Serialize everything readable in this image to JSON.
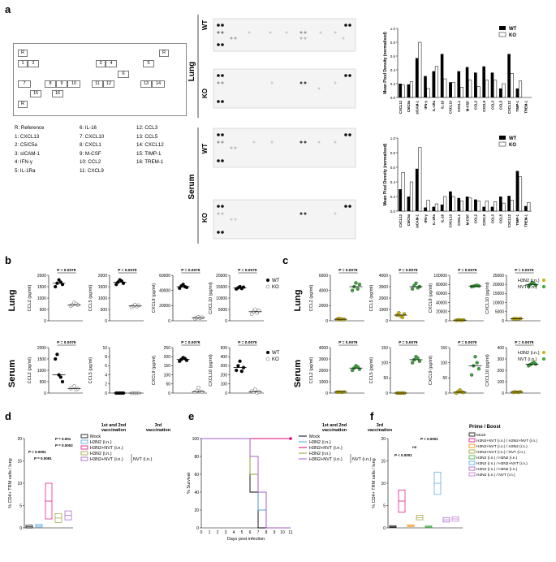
{
  "panels": {
    "a": "a",
    "b": "b",
    "c": "c",
    "d": "d",
    "e": "e",
    "f": "f"
  },
  "panel_a": {
    "key_grid": [
      "R",
      "R",
      "1",
      "2",
      "3",
      "4",
      "5",
      "6",
      "7",
      "8",
      "9",
      "10",
      "11",
      "12",
      "13",
      "14",
      "15",
      "16",
      "R"
    ],
    "legend": [
      [
        "R: Reference",
        "6: IL-16",
        "12: CCL3"
      ],
      [
        "1: CXCL13",
        "7: CXCL10",
        "13: CCL5"
      ],
      [
        "2: C5/C5a",
        "8: CXCL1",
        "14: CXCL12"
      ],
      [
        "3: sICAM-1",
        "9: M-CSF",
        "15: TIMP-1"
      ],
      [
        "4: IFN-γ",
        "10: CCL2",
        "16: TREM-1"
      ],
      [
        "5: IL-1Ra",
        "11: CXCL9",
        ""
      ]
    ],
    "tissue_lung": "Lung",
    "tissue_serum": "Serum",
    "wt": "WT",
    "ko": "KO"
  },
  "chart_data": [
    {
      "type": "bar",
      "id": "a-lung",
      "ylabel": "Mean Pixel Density (normalised)",
      "ylim": [
        0,
        1.0
      ],
      "yticks": [
        "0.0",
        "0.2",
        "0.4",
        "0.6",
        "0.8",
        "1.0"
      ],
      "categories": [
        "CXCL13",
        "C5/C5a",
        "sICAM-1",
        "IFN-γ",
        "IL-1Ra",
        "IL-16",
        "CXCL10",
        "CXCL1",
        "M-CSF",
        "CCL2",
        "CXCL9",
        "CCL3",
        "CCL5",
        "CXCL12",
        "TIMP-1",
        "TREM-1"
      ],
      "series": [
        {
          "name": "WT",
          "values": [
            0.2,
            0.19,
            0.57,
            0.31,
            0.38,
            0.63,
            0.22,
            0.38,
            0.44,
            0.36,
            0.45,
            0.36,
            0.13,
            0.63,
            0.13,
            0.0
          ]
        },
        {
          "name": "KO",
          "values": [
            0.18,
            0.23,
            0.8,
            0.13,
            0.45,
            0.27,
            0.22,
            0.15,
            0.25,
            0.16,
            0.25,
            0.25,
            0.2,
            0.35,
            0.24,
            0.0
          ]
        }
      ],
      "legend": [
        "WT",
        "KO"
      ]
    },
    {
      "type": "bar",
      "id": "a-serum",
      "ylabel": "Mean Pixel Density (normalised)",
      "ylim": [
        0,
        1.0
      ],
      "yticks": [
        "0.0",
        "0.2",
        "0.4",
        "0.6",
        "0.8",
        "1.0"
      ],
      "categories": [
        "CXCL13",
        "C5/C5a",
        "sICAM-1",
        "IFN-γ",
        "IL-1Ra",
        "IL-16",
        "CXCL10",
        "CXCL1",
        "M-CSF",
        "CCL2",
        "CXCL9",
        "CCL3",
        "CCL5",
        "CXCL12",
        "TIMP-1",
        "TREM-1"
      ],
      "series": [
        {
          "name": "WT",
          "values": [
            0.3,
            0.2,
            0.58,
            0.05,
            0.06,
            0.09,
            0.27,
            0.18,
            0.2,
            0.16,
            0.06,
            0.06,
            0.2,
            0.21,
            0.55,
            0.07
          ]
        },
        {
          "name": "KO",
          "values": [
            0.53,
            0.4,
            0.87,
            0.15,
            0.1,
            0.2,
            0.2,
            0.14,
            0.18,
            0.14,
            0.14,
            0.13,
            0.11,
            0.15,
            0.47,
            0.12
          ]
        }
      ],
      "legend": [
        "WT",
        "KO"
      ]
    },
    {
      "type": "scatter",
      "id": "b-lung-ccl2",
      "ylabel": "CCL2 (pg/ml)",
      "yticks": [
        "0",
        "500",
        "1000",
        "1500",
        "2000"
      ],
      "ylim": [
        0,
        2000
      ],
      "pvalue": "P = 0.0079",
      "groups": [
        "WT",
        "KO"
      ],
      "values": [
        [
          1500,
          1650,
          1800,
          1700,
          1600
        ],
        [
          650,
          700,
          800,
          750,
          700
        ]
      ]
    },
    {
      "type": "scatter",
      "id": "b-lung-ccl5",
      "ylabel": "CCL5 (pg/ml)",
      "yticks": [
        "0",
        "500",
        "1000",
        "1500",
        "2000"
      ],
      "ylim": [
        0,
        2000
      ],
      "pvalue": "P = 0.0079",
      "groups": [
        "WT",
        "KO"
      ],
      "values": [
        [
          1600,
          1700,
          1800,
          1750,
          1650
        ],
        [
          600,
          650,
          700,
          620,
          680
        ]
      ]
    },
    {
      "type": "scatter",
      "id": "b-lung-cxcl9",
      "ylabel": "CXCL9 (pg/ml)",
      "yticks": [
        "0",
        "20000",
        "40000",
        "60000"
      ],
      "ylim": [
        0,
        60000
      ],
      "pvalue": "P = 0.0079",
      "groups": [
        "WT",
        "KO"
      ],
      "values": [
        [
          43000,
          46000,
          48000,
          45000,
          44000
        ],
        [
          3000,
          4000,
          5000,
          3500,
          4500
        ]
      ]
    },
    {
      "type": "scatter",
      "id": "b-lung-cxcl10",
      "ylabel": "CXCL10 (pg/ml)",
      "yticks": [
        "0",
        "5000",
        "10000",
        "15000",
        "20000"
      ],
      "ylim": [
        0,
        20000
      ],
      "pvalue": "P = 0.0079",
      "groups": [
        "WT",
        "KO"
      ],
      "values": [
        [
          14000,
          14500,
          15000,
          14200,
          14800
        ],
        [
          3000,
          4000,
          5000,
          3500,
          4500
        ]
      ]
    },
    {
      "type": "scatter",
      "id": "b-serum-ccl2",
      "ylabel": "CCL2 (pg/ml)",
      "yticks": [
        "0",
        "500",
        "1000",
        "1500",
        "2000"
      ],
      "ylim": [
        0,
        2000
      ],
      "pvalue": "P = 0.0079",
      "groups": [
        "WT",
        "KO"
      ],
      "values": [
        [
          1500,
          1700,
          800,
          700,
          500
        ],
        [
          200,
          250,
          300,
          150,
          200
        ]
      ]
    },
    {
      "type": "scatter",
      "id": "b-serum-ccl5",
      "ylabel": "CCL5 (pg/ml)",
      "yticks": [
        "0",
        "2",
        "4",
        "6",
        "8",
        "10"
      ],
      "ylim": [
        0,
        10
      ],
      "pvalue": "",
      "groups": [
        "WT",
        "KO"
      ],
      "values": [
        [
          0,
          0,
          0,
          0,
          0
        ],
        [
          0,
          0,
          0,
          0,
          0
        ]
      ]
    },
    {
      "type": "scatter",
      "id": "b-serum-cxcl9",
      "ylabel": "CXCL9 (pg/ml)",
      "yticks": [
        "0",
        "50",
        "100",
        "150",
        "200",
        "250"
      ],
      "ylim": [
        0,
        250
      ],
      "pvalue": "P = 0.0079",
      "groups": [
        "WT",
        "KO"
      ],
      "values": [
        [
          175,
          185,
          195,
          190,
          180
        ],
        [
          5,
          10,
          30,
          8,
          6
        ]
      ]
    },
    {
      "type": "scatter",
      "id": "b-serum-cxcl10",
      "ylabel": "CXCL10 (pg/ml)",
      "yticks": [
        "0",
        "100",
        "200",
        "300",
        "400",
        "500"
      ],
      "ylim": [
        0,
        500
      ],
      "pvalue": "P = 0.0079",
      "groups": [
        "WT",
        "KO"
      ],
      "values": [
        [
          250,
          300,
          350,
          240,
          280
        ],
        [
          20,
          10,
          40,
          5,
          15
        ]
      ]
    },
    {
      "type": "scatter",
      "id": "c-lung-ccl2",
      "ylabel": "CCL2 (pg/ml)",
      "yticks": [
        "0",
        "2000",
        "4000",
        "6000"
      ],
      "ylim": [
        0,
        6000
      ],
      "pvalue": "P = 0.0079",
      "groups": [
        "H3N2",
        "NVT"
      ],
      "values": [
        [
          200,
          300,
          250,
          150,
          200
        ],
        [
          4000,
          4500,
          5000,
          4200,
          4800
        ]
      ]
    },
    {
      "type": "scatter",
      "id": "c-lung-ccl5",
      "ylabel": "CCL5 (pg/ml)",
      "yticks": [
        "0",
        "1000",
        "2000",
        "3000",
        "4000"
      ],
      "ylim": [
        0,
        4000
      ],
      "pvalue": "P = 0.0079",
      "groups": [
        "H3N2",
        "NVT"
      ],
      "values": [
        [
          500,
          700,
          400,
          300,
          600
        ],
        [
          2800,
          3100,
          3300,
          2900,
          3000
        ]
      ]
    },
    {
      "type": "scatter",
      "id": "c-lung-cxcl9",
      "ylabel": "CXCL9 (pg/ml)",
      "yticks": [
        "0",
        "20000",
        "40000",
        "60000",
        "80000",
        "100000"
      ],
      "ylim": [
        0,
        100000
      ],
      "pvalue": "P = 0.0079",
      "groups": [
        "H3N2",
        "NVT"
      ],
      "values": [
        [
          1000,
          2000,
          1500,
          1200,
          1800
        ],
        [
          75000,
          76000,
          77000,
          78000,
          76500
        ]
      ]
    },
    {
      "type": "scatter",
      "id": "c-lung-cxcl10",
      "ylabel": "CXCL10 (pg/ml)",
      "yticks": [
        "0",
        "5000",
        "10000",
        "15000",
        "20000",
        "25000"
      ],
      "ylim": [
        0,
        25000
      ],
      "pvalue": "P = 0.0079",
      "groups": [
        "H3N2",
        "NVT"
      ],
      "values": [
        [
          1000,
          1200,
          1100,
          900,
          1300
        ],
        [
          19000,
          20000,
          21000,
          20500,
          19500
        ]
      ]
    },
    {
      "type": "scatter",
      "id": "c-serum-ccl2",
      "ylabel": "CCL2 (pg/ml)",
      "yticks": [
        "0",
        "1000",
        "2000",
        "3000",
        "4000"
      ],
      "ylim": [
        0,
        4000
      ],
      "pvalue": "P = 0.0079",
      "groups": [
        "H3N2",
        "NVT"
      ],
      "values": [
        [
          80,
          100,
          90,
          70,
          110
        ],
        [
          2000,
          2200,
          2400,
          2300,
          2100
        ]
      ]
    },
    {
      "type": "scatter",
      "id": "c-serum-ccl5",
      "ylabel": "CCL5 (pg/ml)",
      "yticks": [
        "0",
        "50",
        "100",
        "150"
      ],
      "ylim": [
        0,
        150
      ],
      "pvalue": "P = 0.0079",
      "groups": [
        "H3N2",
        "NVT"
      ],
      "values": [
        [
          0,
          0,
          0,
          0,
          0
        ],
        [
          100,
          110,
          120,
          115,
          105
        ]
      ]
    },
    {
      "type": "scatter",
      "id": "c-serum-cxcl9",
      "ylabel": "CXCL9 (pg/ml)",
      "yticks": [
        "0",
        "50",
        "100",
        "150"
      ],
      "ylim": [
        0,
        150
      ],
      "pvalue": "P = 0.0079",
      "groups": [
        "H3N2",
        "NVT"
      ],
      "values": [
        [
          0,
          5,
          10,
          3,
          2
        ],
        [
          60,
          90,
          120,
          100,
          80
        ]
      ]
    },
    {
      "type": "scatter",
      "id": "c-serum-cxcl10",
      "ylabel": "CXCL10 (pg/ml)",
      "yticks": [
        "0",
        "100",
        "200",
        "300",
        "400"
      ],
      "ylim": [
        0,
        400
      ],
      "pvalue": "P = 0.0079",
      "groups": [
        "H3N2",
        "NVT"
      ],
      "values": [
        [
          5,
          10,
          8,
          6,
          12
        ],
        [
          240,
          250,
          260,
          270,
          255
        ]
      ]
    },
    {
      "type": "box",
      "id": "d",
      "ylabel": "% CD4+ TRM cells / lung",
      "yticks": [
        "0",
        "5",
        "10",
        "15",
        "20"
      ],
      "ylim": [
        0,
        20
      ],
      "groups": [
        "Mock",
        "H3N2 (i.n.)",
        "H3N2+NVT (i.n.)",
        "H3N2 (i.n.) / NVT",
        "H3N2+NVT (i.n.) / NVT"
      ],
      "medians": [
        0.3,
        0.5,
        6.0,
        2.2,
        2.8
      ],
      "pvalues": [
        "P < 0.0001",
        "P = 0.0091",
        "P = 0.001",
        "P = 0.0002"
      ]
    },
    {
      "type": "line",
      "id": "e",
      "ylabel": "% Survival",
      "xlabel": "Days post infection",
      "ylim": [
        0,
        100
      ],
      "yticks": [
        "0",
        "20",
        "40",
        "60",
        "80",
        "100"
      ],
      "x": [
        0,
        1,
        2,
        3,
        4,
        5,
        6,
        7,
        8,
        9,
        10,
        11
      ],
      "series": [
        {
          "name": "Mock",
          "values": [
            100,
            100,
            100,
            100,
            100,
            100,
            40,
            0,
            0,
            0,
            0,
            0
          ]
        },
        {
          "name": "H3N2 (i.n.)",
          "values": [
            100,
            100,
            100,
            100,
            100,
            100,
            60,
            20,
            0,
            0,
            0,
            0
          ]
        },
        {
          "name": "H3N2+NVT (i.n.)",
          "values": [
            100,
            100,
            100,
            100,
            100,
            100,
            100,
            100,
            100,
            100,
            100,
            100
          ]
        },
        {
          "name": "H3N2 (i.n.)",
          "values": [
            100,
            100,
            100,
            100,
            100,
            100,
            60,
            40,
            0,
            0,
            0,
            0
          ]
        },
        {
          "name": "H3N2+NVT (i.n.)",
          "values": [
            100,
            100,
            100,
            100,
            100,
            100,
            80,
            40,
            0,
            0,
            0,
            0
          ]
        }
      ]
    },
    {
      "type": "box",
      "id": "f",
      "ylabel": "% CD4+ TRM cells / lung",
      "yticks": [
        "0",
        "5",
        "10",
        "15",
        "20"
      ],
      "ylim": [
        0,
        20
      ],
      "groups": [
        "Mock",
        "H3N2+NVT / H3N2+NVT",
        "H3N2+NVT / H3N2",
        "H3N2+NVT / NVT",
        "H3N2 / H3N2",
        "H3N2 / H3N2+NVT",
        "H3N2 / H3N2",
        "H3N2 / NVT"
      ],
      "medians": [
        0.3,
        6.0,
        0.5,
        2.3,
        0.3,
        10.0,
        1.8,
        2.0
      ],
      "pvalues": [
        "P < 0.0001",
        "ns",
        "P < 0.0001"
      ]
    }
  ],
  "legends": {
    "b_lung": [
      "WT",
      "KO"
    ],
    "c_lung": [
      "H3N2 (i.n.)",
      "NVT (i.n.)"
    ],
    "d_header": [
      "1st and 2nd",
      "vaccination",
      "3rd",
      "vaccination"
    ],
    "d_items": [
      "Mock",
      "H3N2 (i.n.)",
      "H3N2+NVT (i.n.)",
      "H3N2 (i.n.)",
      "H3N2+NVT (i.n.)"
    ],
    "d_bracket": "NVT (i.n.)",
    "e_xlabel": "Days post infection",
    "f_header": "Prime / Boost",
    "f_items": [
      "Mock",
      "H3N2+NVT (i.n.) / H3N2+NVT (i.n.)",
      "H3N2+NVT (i.n.) / H3N2 (i.n.)",
      "H3N2+NVT (i.n.) / NVT (i.n.)",
      "H3N2 (i.n.) / H3N2 (i.n.)",
      "H3N2 (i.n.) / H3N2+NVT (i.n.)",
      "H3N2 (i.n.) / H3N2 (i.n.)",
      "H3N2 (i.n.) / NVT (i.n.)"
    ],
    "row_lung": "Lung",
    "row_serum": "Serum"
  },
  "colors": {
    "pink": "#e3007e",
    "yellow": "#c8b400",
    "green": "#3aa63a",
    "blue": "#4fa3e0",
    "orange": "#f28c00",
    "olive": "#9b9b2f",
    "purple": "#a558c8",
    "dark": "#000000"
  }
}
